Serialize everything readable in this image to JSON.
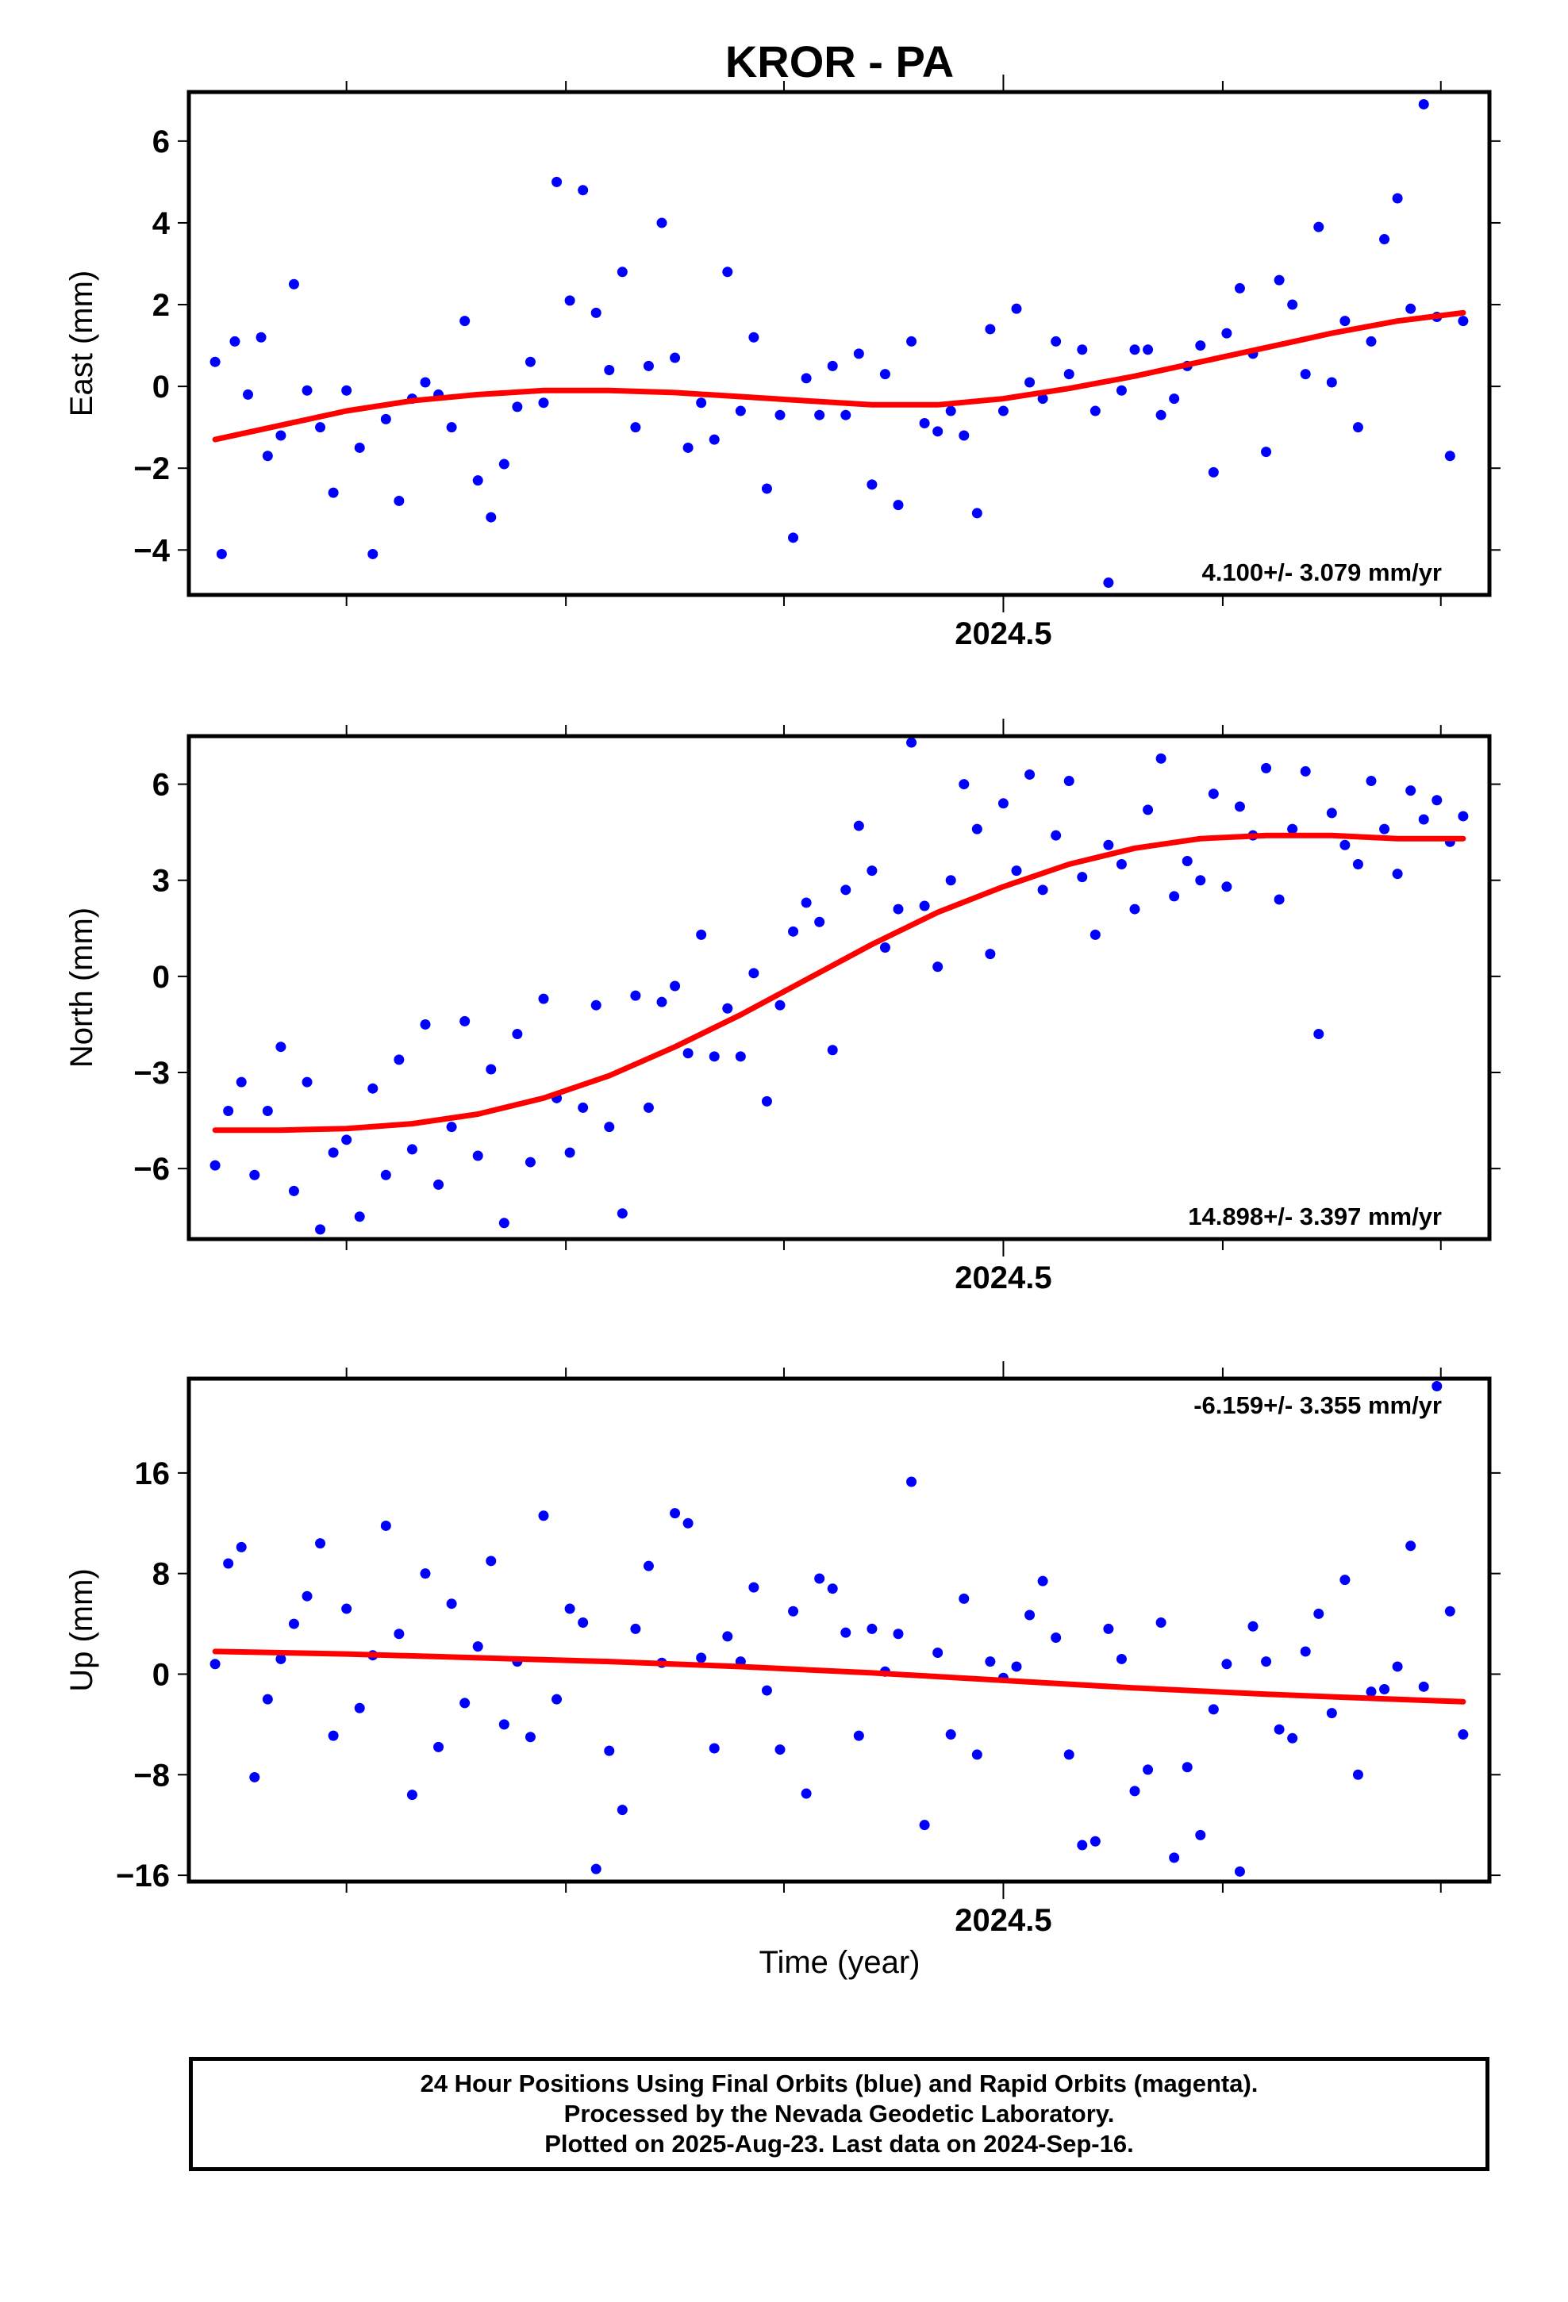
{
  "page": {
    "title": "KROR - PA",
    "x_axis_title": "Time (year)"
  },
  "colors": {
    "points": "#0000ff",
    "fit": "#ff0000",
    "frame": "#000000"
  },
  "chart_data": [
    {
      "type": "scatter",
      "ylabel": "East (mm)",
      "ylim": [
        -5.1,
        7.2
      ],
      "xlim": [
        2023.88,
        2024.87
      ],
      "yticks": [
        -4,
        -2,
        0,
        2,
        4,
        6
      ],
      "ytick_labels": [
        "−4",
        "−2",
        "0",
        "2",
        "4",
        "6"
      ],
      "xticks_major": [
        2024.5
      ],
      "xtick_labels": [
        "2024.5"
      ],
      "xticks_minor": [
        2024.0,
        2024.167,
        2024.333,
        2024.667,
        2024.833
      ],
      "grid": false,
      "rate_label": "4.100+/- 3.079 mm/yr",
      "rate_position": "bottom-right",
      "series": [
        {
          "kind": "points",
          "x": [
            2023.9,
            2023.905,
            2023.915,
            2023.925,
            2023.935,
            2023.94,
            2023.95,
            2023.96,
            2023.97,
            2023.98,
            2023.99,
            2024.0,
            2024.01,
            2024.02,
            2024.03,
            2024.04,
            2024.05,
            2024.06,
            2024.07,
            2024.08,
            2024.09,
            2024.1,
            2024.11,
            2024.12,
            2024.13,
            2024.14,
            2024.15,
            2024.16,
            2024.17,
            2024.18,
            2024.19,
            2024.2,
            2024.21,
            2024.22,
            2024.23,
            2024.24,
            2024.25,
            2024.26,
            2024.27,
            2024.28,
            2024.29,
            2024.3,
            2024.31,
            2024.32,
            2024.33,
            2024.34,
            2024.35,
            2024.36,
            2024.37,
            2024.38,
            2024.39,
            2024.4,
            2024.41,
            2024.42,
            2024.43,
            2024.44,
            2024.45,
            2024.46,
            2024.47,
            2024.48,
            2024.49,
            2024.5,
            2024.51,
            2024.52,
            2024.53,
            2024.54,
            2024.55,
            2024.56,
            2024.57,
            2024.58,
            2024.59,
            2024.6,
            2024.61,
            2024.62,
            2024.63,
            2024.64,
            2024.65,
            2024.66,
            2024.67,
            2024.68,
            2024.69,
            2024.7,
            2024.71,
            2024.72,
            2024.73,
            2024.74,
            2024.75,
            2024.76,
            2024.77,
            2024.78,
            2024.79,
            2024.8,
            2024.81,
            2024.82,
            2024.83,
            2024.84,
            2024.85
          ],
          "y": [
            0.6,
            -4.1,
            1.1,
            -0.2,
            1.2,
            -1.7,
            -1.2,
            2.5,
            -0.1,
            -1.0,
            -2.6,
            -0.1,
            -1.5,
            -4.1,
            -0.8,
            -2.8,
            -0.3,
            0.1,
            -0.2,
            -1.0,
            1.6,
            -2.3,
            -3.2,
            -1.9,
            -0.5,
            0.6,
            -0.4,
            5.0,
            2.1,
            4.8,
            1.8,
            0.4,
            2.8,
            -1.0,
            0.5,
            4.0,
            0.7,
            -1.5,
            -0.4,
            -1.3,
            2.8,
            -0.6,
            1.2,
            -2.5,
            -0.7,
            -3.7,
            0.2,
            -0.7,
            0.5,
            -0.7,
            0.8,
            -2.4,
            0.3,
            -2.9,
            1.1,
            -0.9,
            -1.1,
            -0.6,
            -1.2,
            -3.1,
            1.4,
            -0.6,
            1.9,
            0.1,
            -0.3,
            1.1,
            0.3,
            0.9,
            -0.6,
            -4.8,
            -0.1,
            0.9,
            0.9,
            -0.7,
            -0.3,
            0.5,
            1.0,
            -2.1,
            1.3,
            2.4,
            0.8,
            -1.6,
            2.6,
            2.0,
            0.3,
            3.9,
            0.1,
            1.6,
            -1.0,
            1.1,
            3.6,
            4.6,
            1.9,
            6.9,
            1.7,
            -1.7,
            1.6
          ]
        },
        {
          "kind": "fit",
          "x": [
            2023.9,
            2023.95,
            2024.0,
            2024.05,
            2024.1,
            2024.15,
            2024.2,
            2024.25,
            2024.3,
            2024.35,
            2024.4,
            2024.45,
            2024.5,
            2024.55,
            2024.6,
            2024.65,
            2024.7,
            2024.75,
            2024.8,
            2024.85
          ],
          "y": [
            -1.3,
            -0.95,
            -0.6,
            -0.35,
            -0.2,
            -0.1,
            -0.1,
            -0.15,
            -0.25,
            -0.35,
            -0.45,
            -0.45,
            -0.3,
            -0.05,
            0.25,
            0.6,
            0.95,
            1.3,
            1.6,
            1.8
          ]
        }
      ]
    },
    {
      "type": "scatter",
      "ylabel": "North (mm)",
      "ylim": [
        -8.2,
        7.5
      ],
      "xlim": [
        2023.88,
        2024.87
      ],
      "yticks": [
        -6,
        -3,
        0,
        3,
        6
      ],
      "ytick_labels": [
        "−6",
        "−3",
        "0",
        "3",
        "6"
      ],
      "xticks_major": [
        2024.5
      ],
      "xtick_labels": [
        "2024.5"
      ],
      "xticks_minor": [
        2024.0,
        2024.167,
        2024.333,
        2024.667,
        2024.833
      ],
      "grid": false,
      "rate_label": "14.898+/- 3.397 mm/yr",
      "rate_position": "bottom-right",
      "series": [
        {
          "kind": "points",
          "x": [
            2023.9,
            2023.91,
            2023.92,
            2023.93,
            2023.94,
            2023.95,
            2023.96,
            2023.97,
            2023.98,
            2023.99,
            2024.0,
            2024.01,
            2024.02,
            2024.03,
            2024.04,
            2024.05,
            2024.06,
            2024.07,
            2024.08,
            2024.09,
            2024.1,
            2024.11,
            2024.12,
            2024.13,
            2024.14,
            2024.15,
            2024.16,
            2024.17,
            2024.18,
            2024.19,
            2024.2,
            2024.21,
            2024.22,
            2024.23,
            2024.24,
            2024.25,
            2024.26,
            2024.27,
            2024.28,
            2024.29,
            2024.3,
            2024.31,
            2024.32,
            2024.33,
            2024.34,
            2024.35,
            2024.36,
            2024.37,
            2024.38,
            2024.39,
            2024.4,
            2024.41,
            2024.42,
            2024.43,
            2024.44,
            2024.45,
            2024.46,
            2024.47,
            2024.48,
            2024.49,
            2024.5,
            2024.51,
            2024.52,
            2024.53,
            2024.54,
            2024.55,
            2024.56,
            2024.57,
            2024.58,
            2024.59,
            2024.6,
            2024.61,
            2024.62,
            2024.63,
            2024.64,
            2024.65,
            2024.66,
            2024.67,
            2024.68,
            2024.69,
            2024.7,
            2024.71,
            2024.72,
            2024.73,
            2024.74,
            2024.75,
            2024.76,
            2024.77,
            2024.78,
            2024.79,
            2024.8,
            2024.81,
            2024.82,
            2024.83,
            2024.84,
            2024.85
          ],
          "y": [
            -5.9,
            -4.2,
            -3.3,
            -6.2,
            -4.2,
            -2.2,
            -6.7,
            -3.3,
            -7.9,
            -5.5,
            -5.1,
            -7.5,
            -3.5,
            -6.2,
            -2.6,
            -5.4,
            -1.5,
            -6.5,
            -4.7,
            -1.4,
            -5.6,
            -2.9,
            -7.7,
            -1.8,
            -5.8,
            -0.7,
            -3.8,
            -5.5,
            -4.1,
            -0.9,
            -4.7,
            -7.4,
            -0.6,
            -4.1,
            -0.8,
            -0.3,
            -2.4,
            1.3,
            -2.5,
            -1.0,
            -2.5,
            0.1,
            -3.9,
            -0.9,
            1.4,
            2.3,
            1.7,
            -2.3,
            2.7,
            4.7,
            3.3,
            0.9,
            2.1,
            7.3,
            2.2,
            0.3,
            3.0,
            6.0,
            4.6,
            0.7,
            5.4,
            3.3,
            6.3,
            2.7,
            4.4,
            6.1,
            3.1,
            1.3,
            4.1,
            3.5,
            2.1,
            5.2,
            6.8,
            2.5,
            3.6,
            3.0,
            5.7,
            2.8,
            5.3,
            4.4,
            6.5,
            2.4,
            4.6,
            6.4,
            -1.8,
            5.1,
            4.1,
            3.5,
            6.1,
            4.6,
            3.2,
            5.8,
            4.9,
            5.5,
            4.2,
            5.0
          ]
        },
        {
          "kind": "fit",
          "x": [
            2023.9,
            2023.95,
            2024.0,
            2024.05,
            2024.1,
            2024.15,
            2024.2,
            2024.25,
            2024.3,
            2024.35,
            2024.4,
            2024.45,
            2024.5,
            2024.55,
            2024.6,
            2024.65,
            2024.7,
            2024.75,
            2024.8,
            2024.85
          ],
          "y": [
            -4.8,
            -4.8,
            -4.75,
            -4.6,
            -4.3,
            -3.8,
            -3.1,
            -2.2,
            -1.2,
            -0.1,
            1.0,
            2.0,
            2.8,
            3.5,
            4.0,
            4.3,
            4.4,
            4.4,
            4.3,
            4.3
          ]
        }
      ]
    },
    {
      "type": "scatter",
      "ylabel": "Up (mm)",
      "ylim": [
        -16.5,
        23.5
      ],
      "xlim": [
        2023.88,
        2024.87
      ],
      "yticks": [
        -16,
        -8,
        0,
        8,
        16
      ],
      "ytick_labels": [
        "−16",
        "−8",
        "0",
        "8",
        "16"
      ],
      "xticks_major": [
        2024.5
      ],
      "xtick_labels": [
        "2024.5"
      ],
      "xticks_minor": [
        2024.0,
        2024.167,
        2024.333,
        2024.667,
        2024.833
      ],
      "grid": false,
      "rate_label": "-6.159+/- 3.355 mm/yr",
      "rate_position": "top-right",
      "series": [
        {
          "kind": "points",
          "x": [
            2023.9,
            2023.91,
            2023.92,
            2023.93,
            2023.94,
            2023.95,
            2023.96,
            2023.97,
            2023.98,
            2023.99,
            2024.0,
            2024.01,
            2024.02,
            2024.03,
            2024.04,
            2024.05,
            2024.06,
            2024.07,
            2024.08,
            2024.09,
            2024.1,
            2024.11,
            2024.12,
            2024.13,
            2024.14,
            2024.15,
            2024.16,
            2024.17,
            2024.18,
            2024.19,
            2024.2,
            2024.21,
            2024.22,
            2024.23,
            2024.24,
            2024.25,
            2024.26,
            2024.27,
            2024.28,
            2024.29,
            2024.3,
            2024.31,
            2024.32,
            2024.33,
            2024.34,
            2024.35,
            2024.36,
            2024.37,
            2024.38,
            2024.39,
            2024.4,
            2024.41,
            2024.42,
            2024.43,
            2024.44,
            2024.45,
            2024.46,
            2024.47,
            2024.48,
            2024.49,
            2024.5,
            2024.51,
            2024.52,
            2024.53,
            2024.54,
            2024.55,
            2024.56,
            2024.57,
            2024.58,
            2024.59,
            2024.6,
            2024.61,
            2024.62,
            2024.63,
            2024.64,
            2024.65,
            2024.66,
            2024.67,
            2024.68,
            2024.69,
            2024.7,
            2024.71,
            2024.72,
            2024.73,
            2024.74,
            2024.75,
            2024.76,
            2024.77,
            2024.78,
            2024.79,
            2024.8,
            2024.81,
            2024.82,
            2024.83,
            2024.84,
            2024.85
          ],
          "y": [
            0.8,
            8.8,
            10.1,
            -8.2,
            -2.0,
            1.2,
            4.0,
            6.2,
            10.4,
            -4.9,
            5.2,
            -2.7,
            1.5,
            11.8,
            3.2,
            -9.6,
            8.0,
            -5.8,
            5.6,
            -2.3,
            2.2,
            9.0,
            -4.0,
            1.0,
            -5.0,
            12.6,
            -2.0,
            5.2,
            4.1,
            -15.5,
            -6.1,
            -10.8,
            3.6,
            8.6,
            0.9,
            12.8,
            12.0,
            1.3,
            -5.9,
            3.0,
            1.0,
            6.9,
            -1.3,
            -6.0,
            5.0,
            -9.5,
            7.6,
            6.8,
            3.3,
            -4.9,
            3.6,
            0.2,
            3.2,
            15.3,
            -12.0,
            1.7,
            -4.8,
            6.0,
            -6.4,
            1.0,
            -0.3,
            0.6,
            4.7,
            7.4,
            2.9,
            -6.4,
            -13.6,
            -13.3,
            3.6,
            1.2,
            -9.3,
            -7.6,
            4.1,
            -14.6,
            -7.4,
            -12.8,
            -2.8,
            0.8,
            -15.7,
            3.8,
            1.0,
            -4.4,
            -5.1,
            1.8,
            4.8,
            -3.1,
            7.5,
            -8.0,
            -1.4,
            -1.2,
            0.6,
            10.2,
            -1.0,
            22.9,
            5.0,
            -4.8
          ]
        },
        {
          "kind": "fit",
          "x": [
            2023.9,
            2024.0,
            2024.1,
            2024.2,
            2024.3,
            2024.4,
            2024.5,
            2024.6,
            2024.7,
            2024.8,
            2024.85
          ],
          "y": [
            1.8,
            1.6,
            1.3,
            1.0,
            0.6,
            0.1,
            -0.5,
            -1.1,
            -1.6,
            -2.0,
            -2.2
          ]
        }
      ]
    }
  ],
  "footer": {
    "lines": [
      "24 Hour Positions Using Final Orbits (blue) and Rapid Orbits (magenta).",
      "Processed by the Nevada Geodetic Laboratory.",
      "Plotted on 2025-Aug-23. Last data on 2024-Sep-16."
    ]
  }
}
